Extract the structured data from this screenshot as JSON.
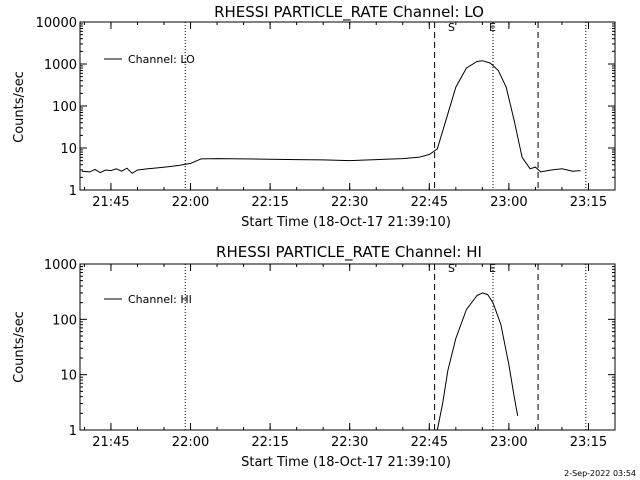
{
  "chart_data": [
    {
      "type": "line",
      "title": "RHESSI PARTICLE_RATE Channel: LO",
      "ylabel": "Counts/sec",
      "xlabel": "Start Time (18-Oct-17 21:39:10)",
      "yscale": "log",
      "ylim": [
        1,
        10000
      ],
      "yticks": [
        "1",
        "10",
        "100",
        "1000",
        "10000"
      ],
      "xlim": [
        "21:39:10",
        "23:20:00"
      ],
      "xticks": [
        "21:45",
        "22:00",
        "22:15",
        "22:30",
        "22:45",
        "23:00",
        "23:15"
      ],
      "legend": {
        "label": "Channel: LO",
        "position": "top-left"
      },
      "markers": {
        "start_label": "S",
        "end_label": "E"
      },
      "series": [
        {
          "x": [
            "21:39:30",
            "21:41:00",
            "21:42:00",
            "21:43:00",
            "21:44:00",
            "21:45:00",
            "21:46:00",
            "21:47:00",
            "21:48:00",
            "21:49:00",
            "21:50:00",
            "21:52:00",
            "21:54:00",
            "21:56:00",
            "21:58:00",
            "22:00:00",
            "22:02:00",
            "22:05:00",
            "22:10:00",
            "22:15:00",
            "22:20:00",
            "22:25:00",
            "22:30:00",
            "22:35:00",
            "22:40:00",
            "22:43:00",
            "22:45:00",
            "22:46:30",
            "22:48:00",
            "22:50:00",
            "22:52:00",
            "22:54:00",
            "22:55:00",
            "22:56:30",
            "22:58:00",
            "22:59:30",
            "23:01:00",
            "23:02:30",
            "23:04:00",
            "23:05:00",
            "23:06:00",
            "23:08:00",
            "23:10:00",
            "23:12:00",
            "23:13:30"
          ],
          "y": [
            2.8,
            2.7,
            3.1,
            2.6,
            3.0,
            2.9,
            3.2,
            2.8,
            3.3,
            2.5,
            3.0,
            3.2,
            3.4,
            3.6,
            3.9,
            4.3,
            5.5,
            5.6,
            5.5,
            5.4,
            5.3,
            5.2,
            5.0,
            5.3,
            5.6,
            6.0,
            7.0,
            9.5,
            40,
            280,
            800,
            1150,
            1200,
            1050,
            700,
            280,
            45,
            6.0,
            3.2,
            3.5,
            2.7,
            3.0,
            3.2,
            2.8,
            2.9
          ]
        }
      ]
    },
    {
      "type": "line",
      "title": "RHESSI PARTICLE_RATE Channel: HI",
      "ylabel": "Counts/sec",
      "xlabel": "Start Time (18-Oct-17 21:39:10)",
      "yscale": "log",
      "ylim": [
        1,
        1000
      ],
      "yticks": [
        "1",
        "10",
        "100",
        "1000"
      ],
      "xlim": [
        "21:39:10",
        "23:20:00"
      ],
      "xticks": [
        "21:45",
        "22:00",
        "22:15",
        "22:30",
        "22:45",
        "23:00",
        "23:15"
      ],
      "legend": {
        "label": "Channel: HI",
        "position": "top-left"
      },
      "markers": {
        "start_label": "S",
        "end_label": "E"
      },
      "series": [
        {
          "x": [
            "22:46:30",
            "22:47:30",
            "22:48:30",
            "22:50:00",
            "22:52:00",
            "22:54:00",
            "22:55:00",
            "22:56:00",
            "22:57:00",
            "22:58:30",
            "23:00:00",
            "23:01:00",
            "23:01:40"
          ],
          "y": [
            1.0,
            3.0,
            12,
            45,
            150,
            270,
            300,
            280,
            200,
            80,
            15,
            4,
            1.8
          ]
        }
      ]
    }
  ],
  "footer": {
    "timestamp": "2-Sep-2022 03:54"
  }
}
